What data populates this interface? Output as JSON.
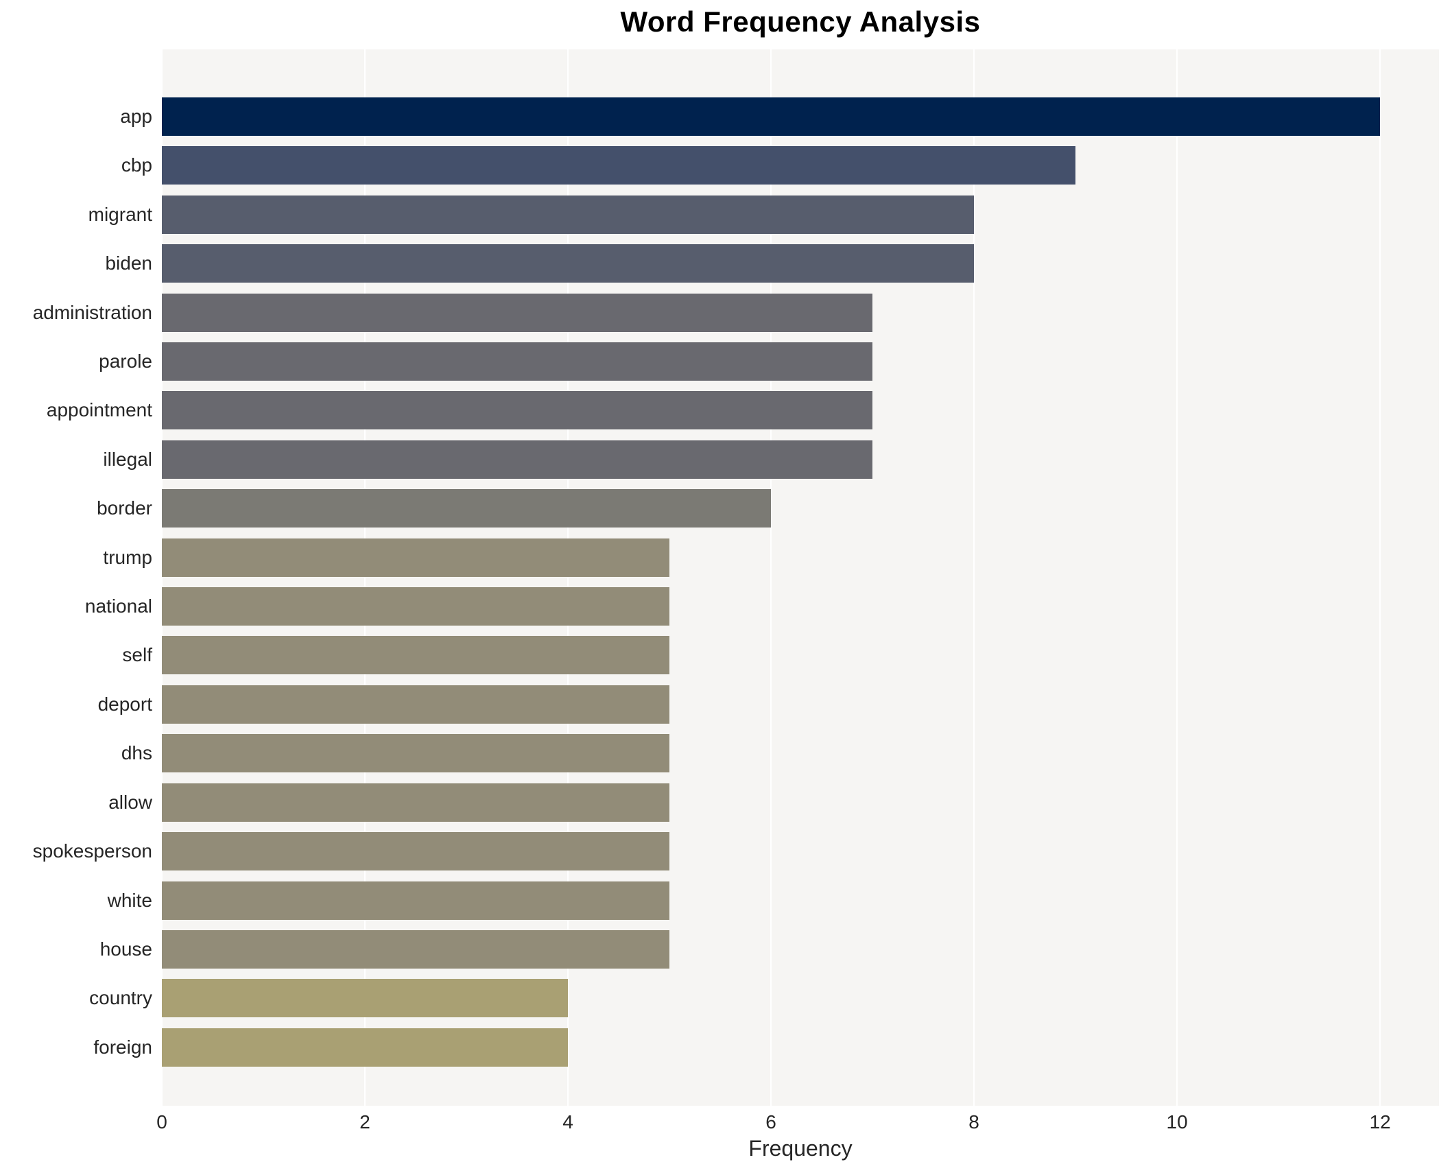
{
  "chart_data": {
    "type": "bar",
    "orientation": "horizontal",
    "title": "Word Frequency Analysis",
    "xlabel": "Frequency",
    "ylabel": "",
    "categories": [
      "app",
      "cbp",
      "migrant",
      "biden",
      "administration",
      "parole",
      "appointment",
      "illegal",
      "border",
      "trump",
      "national",
      "self",
      "deport",
      "dhs",
      "allow",
      "spokesperson",
      "white",
      "house",
      "country",
      "foreign"
    ],
    "values": [
      12,
      9,
      8,
      8,
      7,
      7,
      7,
      7,
      6,
      5,
      5,
      5,
      5,
      5,
      5,
      5,
      5,
      5,
      4,
      4
    ],
    "bar_colors": [
      "#00224e",
      "#44506b",
      "#575d6d",
      "#575d6d",
      "#69696f",
      "#69696f",
      "#69696f",
      "#69696f",
      "#7b7a74",
      "#928c78",
      "#928c78",
      "#928c78",
      "#928c78",
      "#928c78",
      "#928c78",
      "#928c78",
      "#928c78",
      "#928c78",
      "#a9a073",
      "#a9a073"
    ],
    "x_ticks": [
      0,
      2,
      4,
      6,
      8,
      10,
      12
    ],
    "xlim": [
      0,
      12.58
    ],
    "grid": true,
    "gridline_color": "#ffffff",
    "plot_background": "#f6f5f3",
    "legend_position": "none"
  }
}
